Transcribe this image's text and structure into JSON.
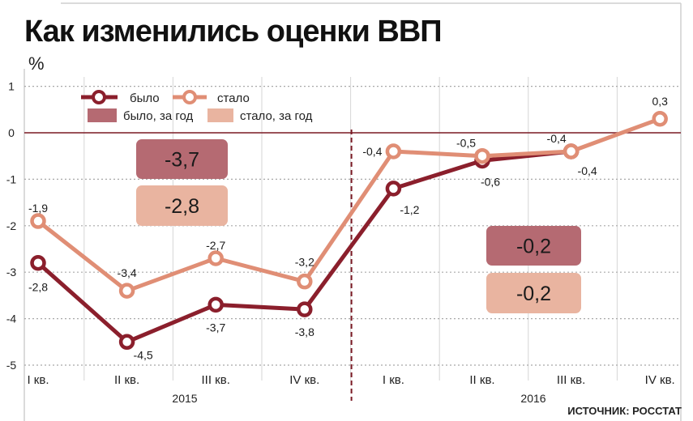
{
  "chart_data": {
    "type": "line",
    "title": "Как изменились оценки ВВП",
    "ylabel": "%",
    "ylim": [
      -5,
      1
    ],
    "yticks": [
      "1",
      "0",
      "-1",
      "-2",
      "-3",
      "-4",
      "-5"
    ],
    "categories": [
      "I кв.",
      "II кв.",
      "III кв.",
      "IV кв.",
      "I кв.",
      "II кв.",
      "III кв.",
      "IV кв."
    ],
    "years": [
      "2015",
      "2016"
    ],
    "series": [
      {
        "name": "было",
        "color": "#8b1f2c",
        "values": [
          -2.8,
          -4.5,
          -3.7,
          -3.8,
          -1.2,
          -0.6,
          -0.4,
          null
        ],
        "labels": [
          "-2,8",
          "-4,5",
          "-3,7",
          "-3,8",
          "-1,2",
          "-0,6",
          "-0,4",
          ""
        ]
      },
      {
        "name": "стало",
        "color": "#e08e75",
        "values": [
          -1.9,
          -3.4,
          -2.7,
          -3.2,
          -0.4,
          -0.5,
          -0.4,
          0.3
        ],
        "labels": [
          "-1,9",
          "-3,4",
          "-2,7",
          "-3,2",
          "-0,4",
          "-0,5",
          "-0,4",
          "0,3"
        ]
      }
    ],
    "annual": [
      {
        "year": "2015",
        "bylo": "-3,7",
        "stalo": "-2,8"
      },
      {
        "year": "2016",
        "bylo": "-0,2",
        "stalo": "-0,2"
      }
    ],
    "legend": {
      "bylo": "было",
      "stalo": "стало",
      "bylo_year": "было, за год",
      "stalo_year": "стало, за год"
    },
    "colors": {
      "bylo": "#8b1f2c",
      "stalo": "#e08e75",
      "bylo_box": "#b56a72",
      "stalo_box": "#e9b4a0",
      "frame": "#7a1a24"
    },
    "source": "ИСТОЧНИК: РОССТАТ"
  }
}
